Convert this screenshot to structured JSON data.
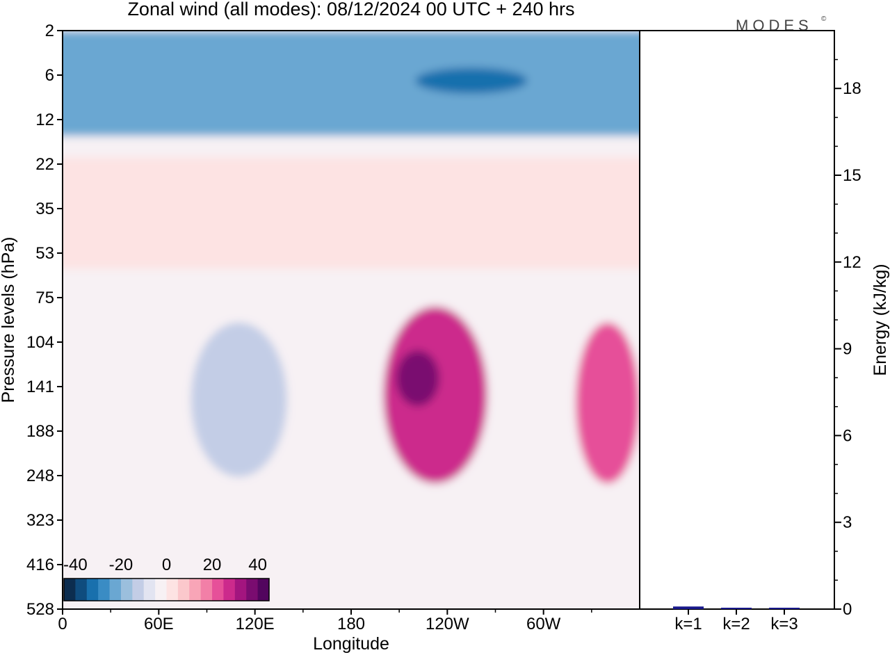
{
  "chart_data": [
    {
      "type": "heatmap",
      "title": "Zonal wind (all modes):  08/12/2024  00 UTC  + 240 hrs",
      "xlabel": "Longitude",
      "ylabel": "Pressure levels (hPa)",
      "x_ticks": [
        "0",
        "60E",
        "120E",
        "180",
        "120W",
        "60W"
      ],
      "x_range_deg_east": [
        0,
        360
      ],
      "y_ticks": [
        "2",
        "6",
        "12",
        "22",
        "35",
        "53",
        "75",
        "104",
        "141",
        "188",
        "248",
        "323",
        "416",
        "528"
      ],
      "y_levels_hPa": [
        2,
        6,
        12,
        22,
        35,
        53,
        75,
        104,
        141,
        188,
        248,
        323,
        416,
        528
      ],
      "y_direction": "pressure decreasing upward",
      "colorbar": {
        "tick_labels": [
          "-40",
          "-20",
          "0",
          "20",
          "40"
        ],
        "range": [
          -40,
          40
        ],
        "step": 5,
        "colors": [
          "#0c2d4f",
          "#0f4c7e",
          "#1970ad",
          "#3a8cc4",
          "#6aa7d2",
          "#9bbfdd",
          "#c3cde6",
          "#e2e4f1",
          "#f7f1f4",
          "#fde3e3",
          "#fbc8cc",
          "#f8a5b7",
          "#f27fa7",
          "#e65099",
          "#cc2a8c",
          "#a3157f",
          "#7a0c70",
          "#52055e"
        ],
        "placement": "bottom-left"
      },
      "features": [
        {
          "lon_range": [
            0,
            360
          ],
          "p_range": [
            2,
            15
          ],
          "value": -22,
          "note": "easterly jet layer"
        },
        {
          "lon_range": [
            220,
            290
          ],
          "p_range": [
            5,
            8
          ],
          "value": -33
        },
        {
          "lon_range": [
            0,
            360
          ],
          "p_range": [
            20,
            60
          ],
          "value": 4
        },
        {
          "lon_range": [
            200,
            265
          ],
          "p_range": [
            80,
            260
          ],
          "value": 28
        },
        {
          "lon_range": [
            208,
            235
          ],
          "p_range": [
            110,
            160
          ],
          "value": 38
        },
        {
          "lon_range": [
            320,
            360
          ],
          "p_range": [
            90,
            260
          ],
          "value": 22
        },
        {
          "lon_range": [
            80,
            140
          ],
          "p_range": [
            90,
            250
          ],
          "value": -12
        }
      ]
    },
    {
      "type": "bar",
      "categories": [
        "k=1",
        "k=2",
        "k=3"
      ],
      "values": [
        0.09,
        0.02,
        0.01
      ],
      "ylabel": "Energy (kJ/kg)",
      "y_ticks": [
        "0",
        "3",
        "6",
        "9",
        "12",
        "15",
        "18"
      ],
      "ylim": [
        0,
        20
      ],
      "bar_colors": [
        "#1a1a8c",
        "#1a1a8c",
        "#1a1a8c"
      ]
    }
  ],
  "logo": {
    "text": "MODES",
    "mark": "©"
  }
}
